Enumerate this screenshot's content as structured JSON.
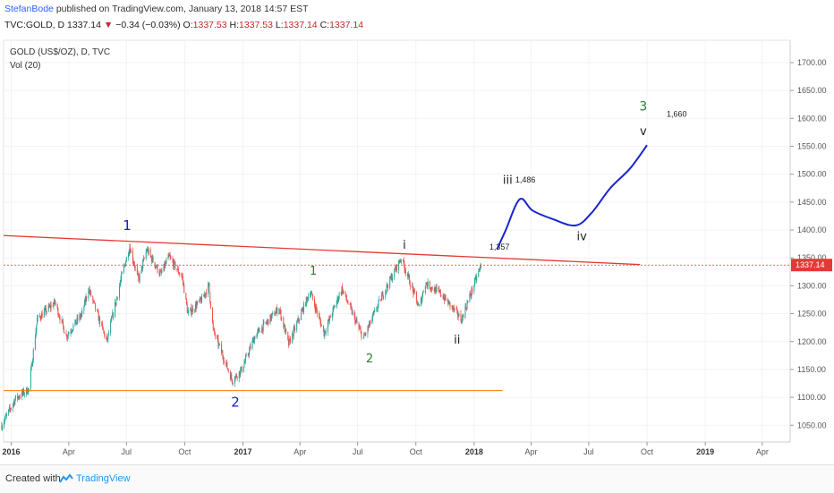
{
  "header": {
    "author": "StefanBode",
    "published_text": "published on TradingView.com, January 13, 2018 14:57 EST",
    "symbol": "TVC:GOLD, D",
    "last": "1337.14",
    "change": "−0.34 (−0.03%)",
    "o_label": "O:",
    "o_value": "1337.53",
    "h_label": "H:",
    "h_value": "1337.53",
    "l_label": "L:",
    "l_value": "1337.14",
    "c_label": "C:",
    "c_value": "1337.14"
  },
  "footer": {
    "created_with": "Created with",
    "brand": "TradingView"
  },
  "chart_data": {
    "type": "candlestick",
    "title": "GOLD (US$/OZ), D, TVC",
    "subtitle": "Vol (20)",
    "ylim": [
      1020,
      1740
    ],
    "yticks": [
      1050,
      1100,
      1150,
      1200,
      1250,
      1300,
      1350,
      1400,
      1450,
      1500,
      1550,
      1600,
      1650,
      1700
    ],
    "ytick_labels": [
      "1050.00",
      "1100.00",
      "1150.00",
      "1200.00",
      "1250.00",
      "1300.00",
      "1350.00",
      "1400.00",
      "1450.00",
      "1500.00",
      "1550.00",
      "1600.00",
      "1650.00",
      "1700.00"
    ],
    "xlim": [
      "2015-12-20",
      "2019-05-15"
    ],
    "xticks": [
      {
        "date": "2016-01-01",
        "label": "2016",
        "bold": true
      },
      {
        "date": "2016-04-01",
        "label": "Apr",
        "bold": false
      },
      {
        "date": "2016-07-01",
        "label": "Jul",
        "bold": false
      },
      {
        "date": "2016-10-01",
        "label": "Oct",
        "bold": false
      },
      {
        "date": "2017-01-01",
        "label": "2017",
        "bold": true
      },
      {
        "date": "2017-04-01",
        "label": "Apr",
        "bold": false
      },
      {
        "date": "2017-07-01",
        "label": "Jul",
        "bold": false
      },
      {
        "date": "2017-10-01",
        "label": "Oct",
        "bold": false
      },
      {
        "date": "2018-01-01",
        "label": "2018",
        "bold": true
      },
      {
        "date": "2018-04-01",
        "label": "Apr",
        "bold": false
      },
      {
        "date": "2018-07-01",
        "label": "Jul",
        "bold": false
      },
      {
        "date": "2018-10-01",
        "label": "Oct",
        "bold": false
      },
      {
        "date": "2019-01-01",
        "label": "2019",
        "bold": true
      },
      {
        "date": "2019-04-01",
        "label": "Apr",
        "bold": false
      }
    ],
    "price_path": [
      [
        "2015-12-17",
        1050
      ],
      [
        "2016-01-08",
        1098
      ],
      [
        "2016-01-29",
        1115
      ],
      [
        "2016-02-11",
        1240
      ],
      [
        "2016-03-10",
        1270
      ],
      [
        "2016-03-28",
        1210
      ],
      [
        "2016-04-22",
        1250
      ],
      [
        "2016-05-02",
        1295
      ],
      [
        "2016-05-31",
        1200
      ],
      [
        "2016-06-24",
        1320
      ],
      [
        "2016-07-06",
        1370
      ],
      [
        "2016-07-20",
        1310
      ],
      [
        "2016-08-02",
        1365
      ],
      [
        "2016-08-24",
        1320
      ],
      [
        "2016-09-06",
        1352
      ],
      [
        "2016-09-27",
        1315
      ],
      [
        "2016-10-06",
        1250
      ],
      [
        "2016-10-28",
        1275
      ],
      [
        "2016-11-08",
        1300
      ],
      [
        "2016-11-15",
        1220
      ],
      [
        "2016-12-15",
        1130
      ],
      [
        "2016-12-30",
        1150
      ],
      [
        "2017-01-20",
        1210
      ],
      [
        "2017-02-27",
        1260
      ],
      [
        "2017-03-14",
        1195
      ],
      [
        "2017-04-17",
        1290
      ],
      [
        "2017-05-09",
        1215
      ],
      [
        "2017-06-06",
        1295
      ],
      [
        "2017-07-10",
        1205
      ],
      [
        "2017-08-08",
        1280
      ],
      [
        "2017-09-08",
        1350
      ],
      [
        "2017-10-06",
        1260
      ],
      [
        "2017-10-16",
        1305
      ],
      [
        "2017-11-10",
        1285
      ],
      [
        "2017-12-12",
        1240
      ],
      [
        "2018-01-12",
        1337
      ]
    ],
    "last_price": 1337.14,
    "last_price_label": "1337.14",
    "projection": [
      [
        "2018-02-06",
        1365
      ],
      [
        "2018-02-20",
        1400
      ],
      [
        "2018-03-14",
        1455
      ],
      [
        "2018-04-03",
        1435
      ],
      [
        "2018-05-04",
        1420
      ],
      [
        "2018-06-10",
        1408
      ],
      [
        "2018-07-05",
        1430
      ],
      [
        "2018-08-04",
        1475
      ],
      [
        "2018-09-04",
        1510
      ],
      [
        "2018-10-01",
        1552
      ]
    ],
    "resistance_line": [
      [
        "2015-12-20",
        1390
      ],
      [
        "2018-09-20",
        1338
      ]
    ],
    "support_line": [
      [
        "2015-12-20",
        1112
      ],
      [
        "2018-02-15",
        1112
      ]
    ],
    "wave_labels": [
      {
        "text": "1",
        "date": "2016-07-02",
        "price": 1400,
        "color": "#1a23b8",
        "size": 15
      },
      {
        "text": "2",
        "date": "2016-12-20",
        "price": 1083,
        "color": "#1a23b8",
        "size": 15
      },
      {
        "text": "1",
        "date": "2017-04-22",
        "price": 1320,
        "color": "#2e7d32",
        "size": 13
      },
      {
        "text": "2",
        "date": "2017-07-20",
        "price": 1163,
        "color": "#2e7d32",
        "size": 13
      },
      {
        "text": "i",
        "date": "2017-09-13",
        "price": 1366,
        "color": "#222222",
        "size": 13
      },
      {
        "text": "ii",
        "date": "2017-12-05",
        "price": 1196,
        "color": "#222222",
        "size": 13
      },
      {
        "text": "iii",
        "date": "2018-02-23",
        "price": 1483,
        "color": "#222222",
        "size": 13
      },
      {
        "text": "iv",
        "date": "2018-06-20",
        "price": 1382,
        "color": "#222222",
        "size": 13
      },
      {
        "text": "v",
        "date": "2018-09-25",
        "price": 1570,
        "color": "#222222",
        "size": 13
      },
      {
        "text": "3",
        "date": "2018-09-25",
        "price": 1614,
        "color": "#2e7d32",
        "size": 14
      }
    ],
    "price_annotations": [
      {
        "text": "1,357",
        "date": "2018-01-25",
        "price": 1365
      },
      {
        "text": "1,486",
        "date": "2018-03-07",
        "price": 1485
      },
      {
        "text": "1,660",
        "date": "2018-11-01",
        "price": 1603
      }
    ]
  }
}
